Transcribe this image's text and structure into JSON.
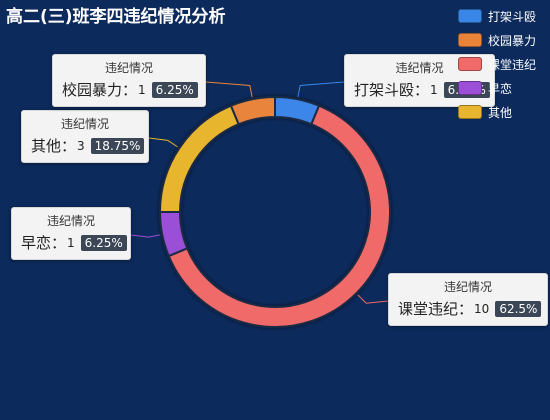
{
  "chart_data": {
    "type": "pie",
    "title": "高二(三)班李四违纪情况分析",
    "series_name": "违纪情况",
    "separator": "：",
    "legend_position": "top-right",
    "slices": [
      {
        "name": "打架斗殴",
        "value": 1,
        "percent": "6.25%",
        "color": "#3a86e8"
      },
      {
        "name": "课堂违纪",
        "value": 10,
        "percent": "62.5%",
        "color": "#f06a6a"
      },
      {
        "name": "早恋",
        "value": 1,
        "percent": "6.25%",
        "color": "#9b4fd6"
      },
      {
        "name": "其他",
        "value": 3,
        "percent": "18.75%",
        "color": "#e8b52f"
      },
      {
        "name": "校园暴力",
        "value": 1,
        "percent": "6.25%",
        "color": "#e8843a"
      }
    ],
    "legend_order": [
      "打架斗殴",
      "校园暴力",
      "课堂违纪",
      "早恋",
      "其他"
    ]
  }
}
